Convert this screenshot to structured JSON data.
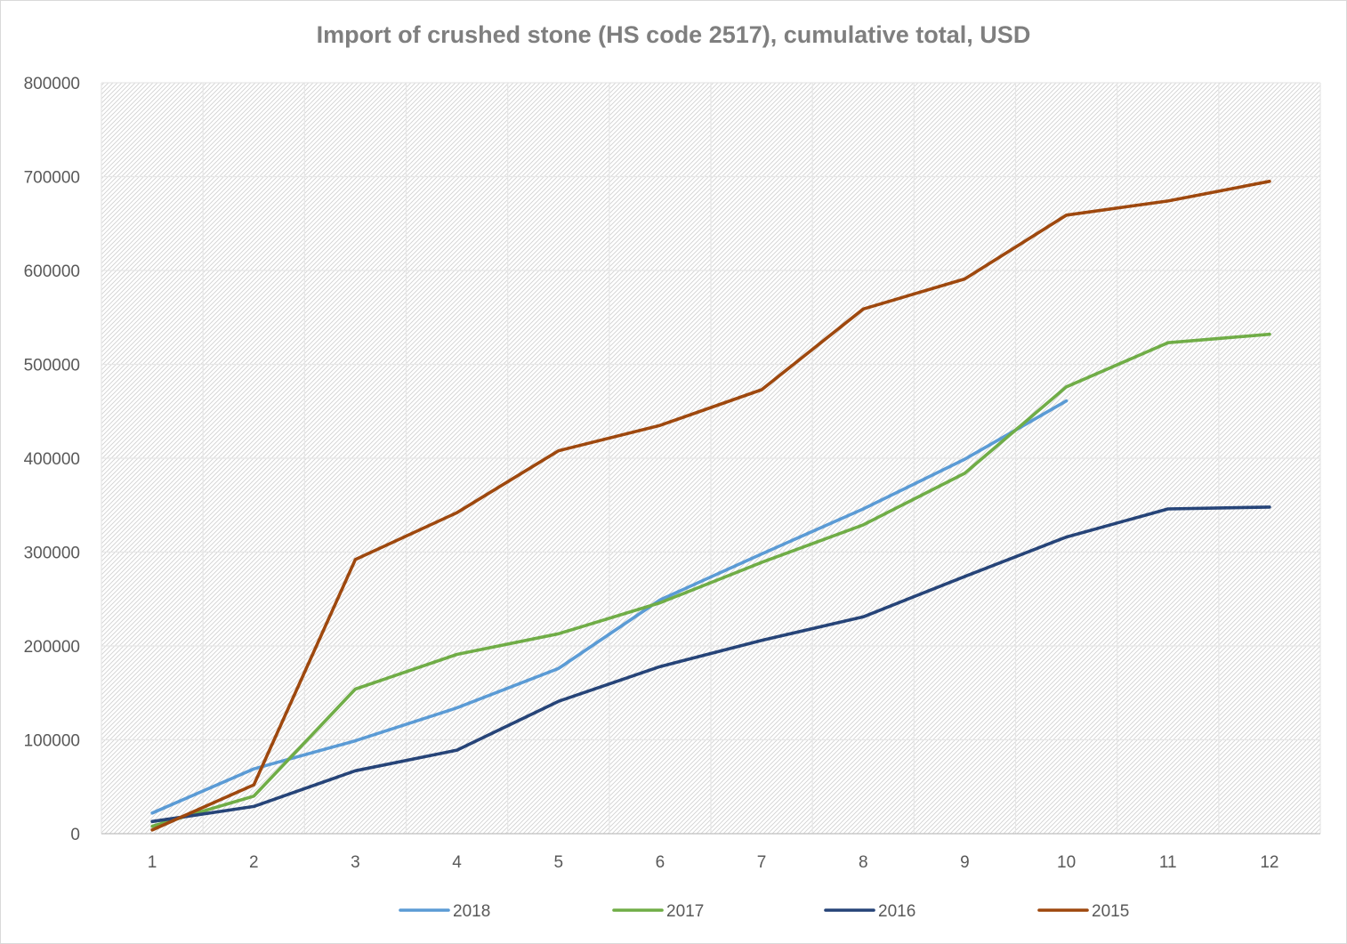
{
  "chart_data": {
    "type": "line",
    "title": "Import of crushed stone (HS code 2517), cumulative total, USD",
    "xlabel": "",
    "ylabel": "",
    "categories": [
      "1",
      "2",
      "3",
      "4",
      "5",
      "6",
      "7",
      "8",
      "9",
      "10",
      "11",
      "12"
    ],
    "ylim": [
      0,
      800000
    ],
    "yticks": [
      "0",
      "100000",
      "200000",
      "300000",
      "400000",
      "500000",
      "600000",
      "700000",
      "800000"
    ],
    "grid": true,
    "legend_position": "bottom",
    "series": [
      {
        "name": "2018",
        "color": "#5b9bd5",
        "values": [
          22000,
          69000,
          99000,
          134000,
          176000,
          249000,
          298000,
          346000,
          399000,
          461000,
          null,
          null
        ]
      },
      {
        "name": "2017",
        "color": "#70ad47",
        "values": [
          8000,
          40000,
          154000,
          191000,
          213000,
          246000,
          289000,
          329000,
          384000,
          476000,
          523000,
          532000
        ]
      },
      {
        "name": "2016",
        "color": "#264478",
        "values": [
          13000,
          29000,
          67000,
          89000,
          141000,
          178000,
          206000,
          231000,
          274000,
          316000,
          346000,
          348000
        ]
      },
      {
        "name": "2015",
        "color": "#9e480e",
        "values": [
          4000,
          52000,
          292000,
          342000,
          408000,
          435000,
          473000,
          559000,
          591000,
          659000,
          674000,
          695000
        ]
      }
    ]
  }
}
